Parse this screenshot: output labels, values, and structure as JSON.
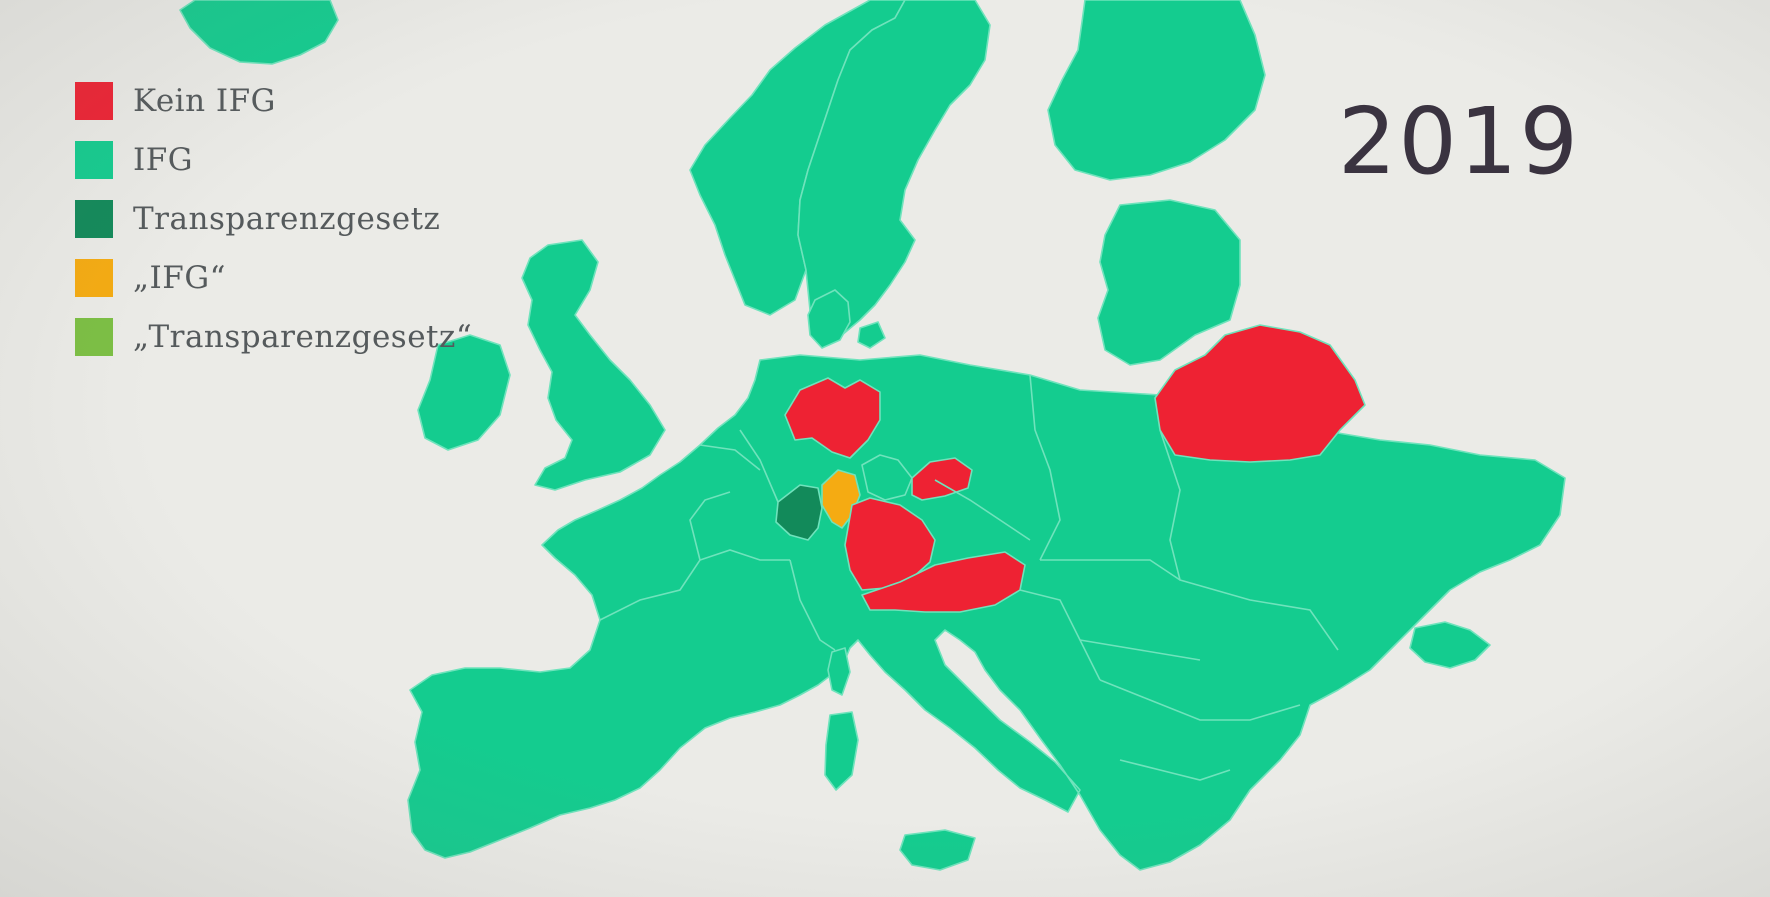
{
  "year": "2019",
  "legend": [
    {
      "label": "Kein IFG",
      "color": "#ee2233"
    },
    {
      "label": "IFG",
      "color": "#14cc8f"
    },
    {
      "label": "Transparenzgesetz",
      "color": "#128a5a"
    },
    {
      "label": "„IFG“",
      "color": "#f5ab12"
    },
    {
      "label": "„Transparenzgesetz“",
      "color": "#7cbf44"
    }
  ],
  "colors": {
    "background": "#ebebe7",
    "ifg": "#14cc8f",
    "kein_ifg": "#ee2233",
    "transparenzgesetz": "#128a5a",
    "ifg_quoted": "#f5ab12",
    "transparenzgesetz_quoted": "#7cbf44",
    "borders": "#6fe3bc"
  },
  "regions": [
    {
      "name": "iceland",
      "status": "ifg"
    },
    {
      "name": "norway",
      "status": "ifg"
    },
    {
      "name": "sweden",
      "status": "ifg"
    },
    {
      "name": "finland",
      "status": "ifg"
    },
    {
      "name": "denmark",
      "status": "ifg"
    },
    {
      "name": "ireland",
      "status": "ifg"
    },
    {
      "name": "great-britain",
      "status": "ifg"
    },
    {
      "name": "baltics",
      "status": "ifg"
    },
    {
      "name": "continental-europe",
      "status": "ifg"
    },
    {
      "name": "belarus",
      "status": "kein_ifg"
    },
    {
      "name": "lower-saxony",
      "status": "kein_ifg"
    },
    {
      "name": "saxony",
      "status": "kein_ifg"
    },
    {
      "name": "bavaria",
      "status": "kein_ifg"
    },
    {
      "name": "austria",
      "status": "kein_ifg"
    },
    {
      "name": "hesse",
      "status": "ifg_quoted"
    },
    {
      "name": "rhineland-palatinate",
      "status": "transparenzgesetz"
    },
    {
      "name": "thuringia",
      "status": "ifg"
    },
    {
      "name": "corsica",
      "status": "ifg"
    },
    {
      "name": "sardinia",
      "status": "ifg"
    },
    {
      "name": "sicily",
      "status": "ifg"
    },
    {
      "name": "crimea",
      "status": "ifg"
    }
  ]
}
